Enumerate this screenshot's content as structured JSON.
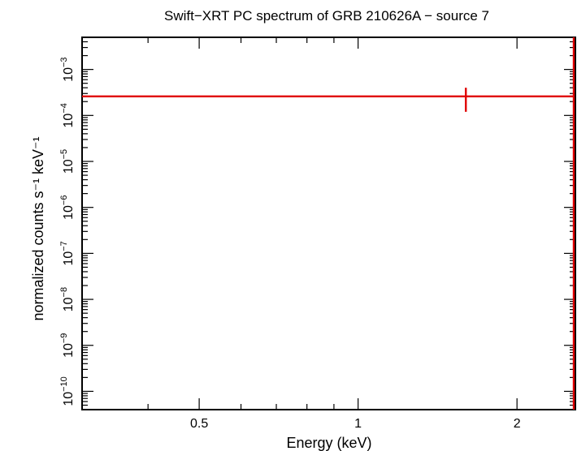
{
  "chart_data": {
    "type": "scatter",
    "title": "Swift−XRT PC spectrum of GRB 210626A − source 7",
    "xlabel": "Energy (keV)",
    "ylabel": "normalized counts s⁻¹ keV⁻¹",
    "x_scale": "log",
    "y_scale": "log",
    "xlim": [
      0.3,
      2.58
    ],
    "ylim": [
      4e-11,
      0.005
    ],
    "x_ticks": [
      {
        "value": 0.5,
        "label": "0.5"
      },
      {
        "value": 1,
        "label": "1"
      },
      {
        "value": 2,
        "label": "2"
      }
    ],
    "y_ticks": [
      {
        "value": 1e-10,
        "base": "10",
        "exp": "−10"
      },
      {
        "value": 1e-09,
        "base": "10",
        "exp": "−9"
      },
      {
        "value": 1e-08,
        "base": "10",
        "exp": "−8"
      },
      {
        "value": 1e-07,
        "base": "10",
        "exp": "−7"
      },
      {
        "value": 1e-06,
        "base": "10",
        "exp": "−6"
      },
      {
        "value": 1e-05,
        "base": "10",
        "exp": "−5"
      },
      {
        "value": 0.0001,
        "base": "10",
        "exp": "−4"
      },
      {
        "value": 0.001,
        "base": "10",
        "exp": "−3"
      }
    ],
    "series": [
      {
        "color": "#e00000",
        "points": [
          {
            "x": 1.6,
            "xerr_low": 0.3,
            "xerr_high": 2.58,
            "y": 0.00026,
            "yerr_low": 0.00012,
            "yerr_high": 0.0004
          },
          {
            "x": 2.58,
            "xerr_low": 2.57,
            "xerr_high": 2.58,
            "y": 0.002,
            "yerr_low": 4e-11,
            "yerr_high": 0.005
          }
        ]
      }
    ]
  }
}
